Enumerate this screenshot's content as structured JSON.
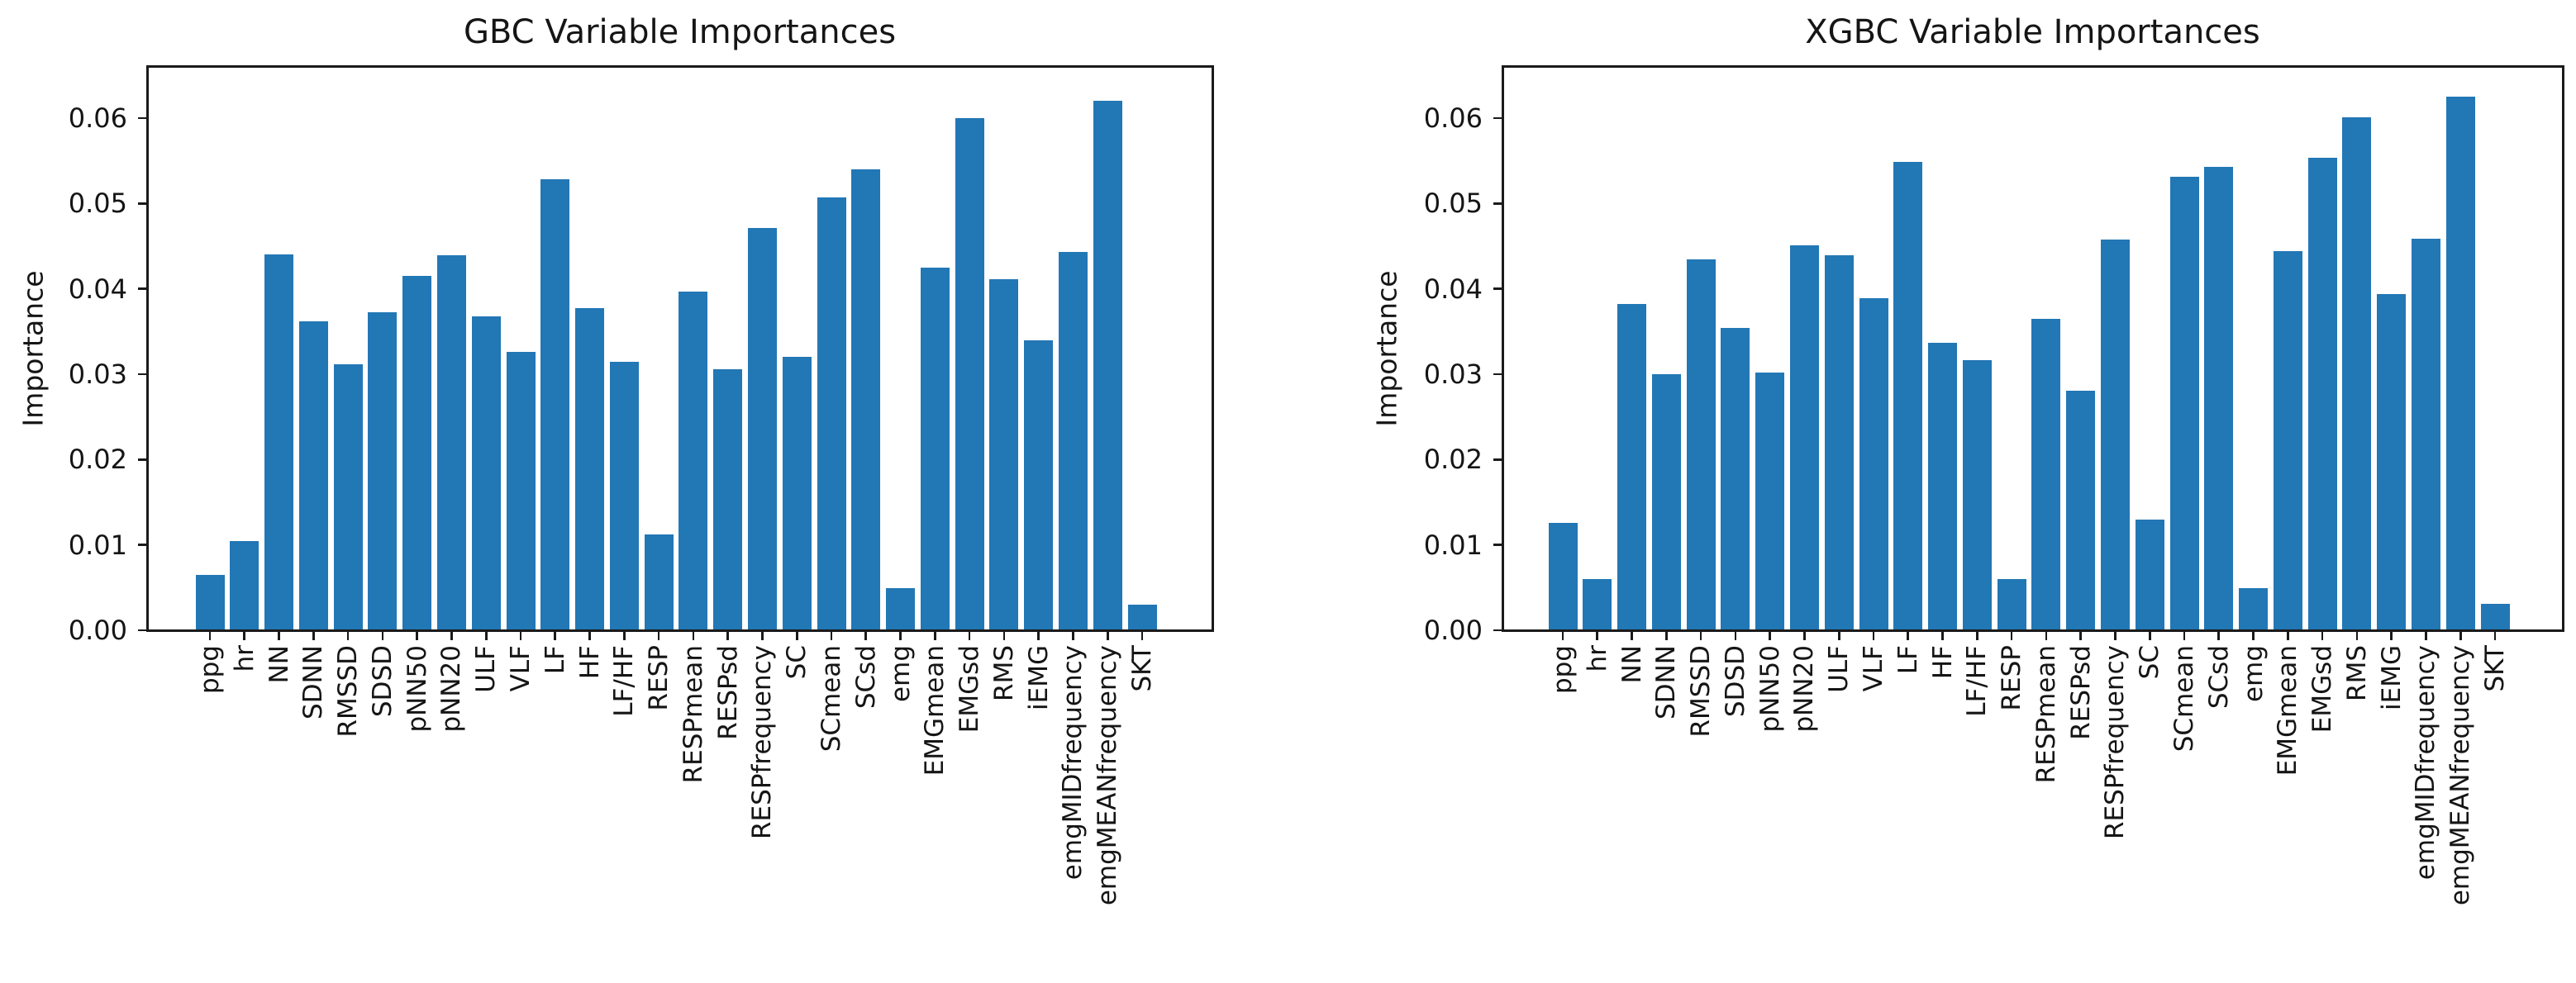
{
  "figure": {
    "background_color": "#ffffff",
    "axis_color": "#1a1a1a",
    "bar_color": "#2277b5"
  },
  "chart_data": [
    {
      "type": "bar",
      "title": "GBC Variable Importances",
      "ylabel": "Importance",
      "xlabel": "",
      "legend": "none",
      "grid": false,
      "tick_rotation": 90,
      "ylim": [
        0,
        0.0661
      ],
      "yticks": [
        0,
        0.01,
        0.02,
        0.03,
        0.04,
        0.05,
        0.06
      ],
      "ytick_labels": [
        "0.00",
        "0.01",
        "0.02",
        "0.03",
        "0.04",
        "0.05",
        "0.06"
      ],
      "categories": [
        "ppg",
        "hr",
        "NN",
        "SDNN",
        "RMSSD",
        "SDSD",
        "pNN50",
        "pNN20",
        "ULF",
        "VLF",
        "LF",
        "HF",
        "LF/HF",
        "RESP",
        "RESPmean",
        "RESPsd",
        "RESPfrequency",
        "SC",
        "SCmean",
        "SCsd",
        "emg",
        "EMGmean",
        "EMGsd",
        "RMS",
        "iEMG",
        "emgMIDfrequency",
        "emgMEANfrequency",
        "SKT"
      ],
      "values": [
        0.0065,
        0.0105,
        0.044,
        0.0362,
        0.0312,
        0.0373,
        0.0415,
        0.0439,
        0.0368,
        0.0326,
        0.0528,
        0.0377,
        0.0315,
        0.0112,
        0.0397,
        0.0306,
        0.0471,
        0.032,
        0.0507,
        0.054,
        0.0049,
        0.0425,
        0.06,
        0.0411,
        0.034,
        0.0443,
        0.062,
        0.003
      ]
    },
    {
      "type": "bar",
      "title": "XGBC Variable Importances",
      "ylabel": "Importance",
      "xlabel": "",
      "legend": "none",
      "grid": false,
      "tick_rotation": 90,
      "ylim": [
        0,
        0.0661
      ],
      "yticks": [
        0,
        0.01,
        0.02,
        0.03,
        0.04,
        0.05,
        0.06
      ],
      "ytick_labels": [
        "0.00",
        "0.01",
        "0.02",
        "0.03",
        "0.04",
        "0.05",
        "0.06"
      ],
      "categories": [
        "ppg",
        "hr",
        "NN",
        "SDNN",
        "RMSSD",
        "SDSD",
        "pNN50",
        "pNN20",
        "ULF",
        "VLF",
        "LF",
        "HF",
        "LF/HF",
        "RESP",
        "RESPmean",
        "RESPsd",
        "RESPfrequency",
        "SC",
        "SCmean",
        "SCsd",
        "emg",
        "EMGmean",
        "EMGsd",
        "RMS",
        "iEMG",
        "emgMIDfrequency",
        "emgMEANfrequency",
        "SKT"
      ],
      "values": [
        0.0126,
        0.006,
        0.0382,
        0.03,
        0.0435,
        0.0354,
        0.0302,
        0.0451,
        0.0439,
        0.0389,
        0.0549,
        0.0337,
        0.0316,
        0.006,
        0.0365,
        0.0281,
        0.0458,
        0.013,
        0.0531,
        0.0543,
        0.0049,
        0.0444,
        0.0554,
        0.0601,
        0.0394,
        0.0459,
        0.0625,
        0.0031
      ]
    }
  ]
}
